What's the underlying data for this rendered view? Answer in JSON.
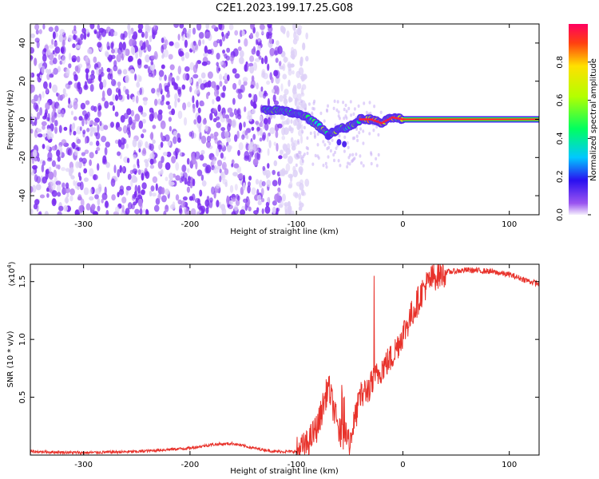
{
  "title": "C2E1.2023.199.17.25.G08",
  "chart_data": [
    {
      "type": "heatmap",
      "title": "",
      "xlabel": "Height of straight line (km)",
      "ylabel": "Frequency (Hz)",
      "xlim": [
        -350,
        128
      ],
      "ylim": [
        -50,
        50
      ],
      "xticks": [
        -300,
        -200,
        -100,
        0,
        100
      ],
      "xtick_labels": [
        "-300",
        "-200",
        "-100",
        "0",
        "100"
      ],
      "yticks": [
        -40,
        -20,
        0,
        20,
        40
      ],
      "ytick_labels": [
        "-40",
        "-20",
        "0",
        "20",
        "40"
      ],
      "colorbar": {
        "label": "Normalized spectral amplitude",
        "range": [
          0,
          1
        ],
        "ticks": [
          0.0,
          0.2,
          0.4,
          0.6,
          0.8
        ],
        "tick_labels": [
          "0.0",
          "0.2",
          "0.4",
          "0.6",
          "0.8"
        ]
      },
      "noise_region_x": [
        -350,
        -100
      ],
      "signal_track": [
        {
          "x": -130,
          "y": 5
        },
        {
          "x": -120,
          "y": 5
        },
        {
          "x": -110,
          "y": 4
        },
        {
          "x": -100,
          "y": 3
        },
        {
          "x": -90,
          "y": 1
        },
        {
          "x": -80,
          "y": -3
        },
        {
          "x": -70,
          "y": -8
        },
        {
          "x": -60,
          "y": -5
        },
        {
          "x": -50,
          "y": -4
        },
        {
          "x": -40,
          "y": 0
        },
        {
          "x": -30,
          "y": 0
        },
        {
          "x": -20,
          "y": -2
        },
        {
          "x": -10,
          "y": 1
        },
        {
          "x": 0,
          "y": 0
        },
        {
          "x": 128,
          "y": 0
        }
      ]
    },
    {
      "type": "line",
      "title": "",
      "xlabel": "Height of straight line (km)",
      "ylabel": "SNR (10 * v/v)",
      "y_multiplier": "(x10",
      "y_multiplier_exp": "4",
      "y_multiplier_close": ")",
      "xlim": [
        -350,
        128
      ],
      "ylim": [
        0,
        16500
      ],
      "xticks": [
        -300,
        -200,
        -100,
        0,
        100
      ],
      "xtick_labels": [
        "-300",
        "-200",
        "-100",
        "0",
        "100"
      ],
      "yticks": [
        5000,
        10000,
        15000
      ],
      "ytick_labels": [
        "0.5",
        "1.0",
        "1.5"
      ],
      "color": "#e8322b",
      "series": [
        {
          "x": [
            -350,
            -300,
            -250,
            -200,
            -180,
            -160,
            -140,
            -120,
            -100,
            -90,
            -80,
            -70,
            -60,
            -50,
            -40,
            -30,
            -20,
            -10,
            0,
            10,
            20,
            30,
            40,
            60,
            80,
            100,
            120,
            128
          ],
          "values": [
            300,
            200,
            300,
            600,
            900,
            1000,
            600,
            300,
            300,
            900,
            2500,
            6000,
            2000,
            1200,
            5000,
            6000,
            7500,
            8500,
            10500,
            12500,
            14500,
            15500,
            15800,
            16000,
            15900,
            15600,
            15000,
            14800
          ]
        }
      ]
    }
  ]
}
